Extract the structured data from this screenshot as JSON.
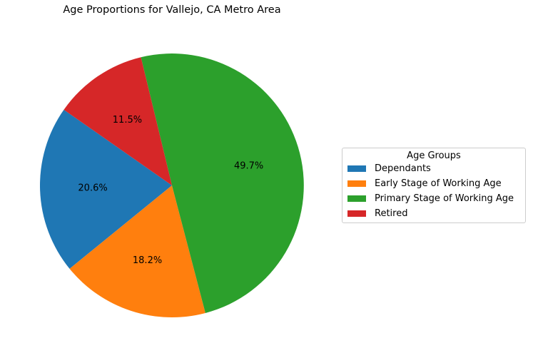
{
  "chart_data": {
    "type": "pie",
    "title": "Age Proportions for Vallejo, CA Metro Area",
    "legend_title": "Age Groups",
    "legend_position": "right",
    "start_angle_deg": 145,
    "direction": "counterclockwise",
    "slices": [
      {
        "label": "Dependants",
        "value": 20.6,
        "value_label": "20.6%",
        "color": "#1f77b4"
      },
      {
        "label": "Early Stage of Working Age",
        "value": 18.2,
        "value_label": "18.2%",
        "color": "#ff7f0e"
      },
      {
        "label": "Primary Stage of Working Age",
        "value": 49.7,
        "value_label": "49.7%",
        "color": "#2ca02c"
      },
      {
        "label": "Retired",
        "value": 11.5,
        "value_label": "11.5%",
        "color": "#d62728"
      }
    ]
  }
}
